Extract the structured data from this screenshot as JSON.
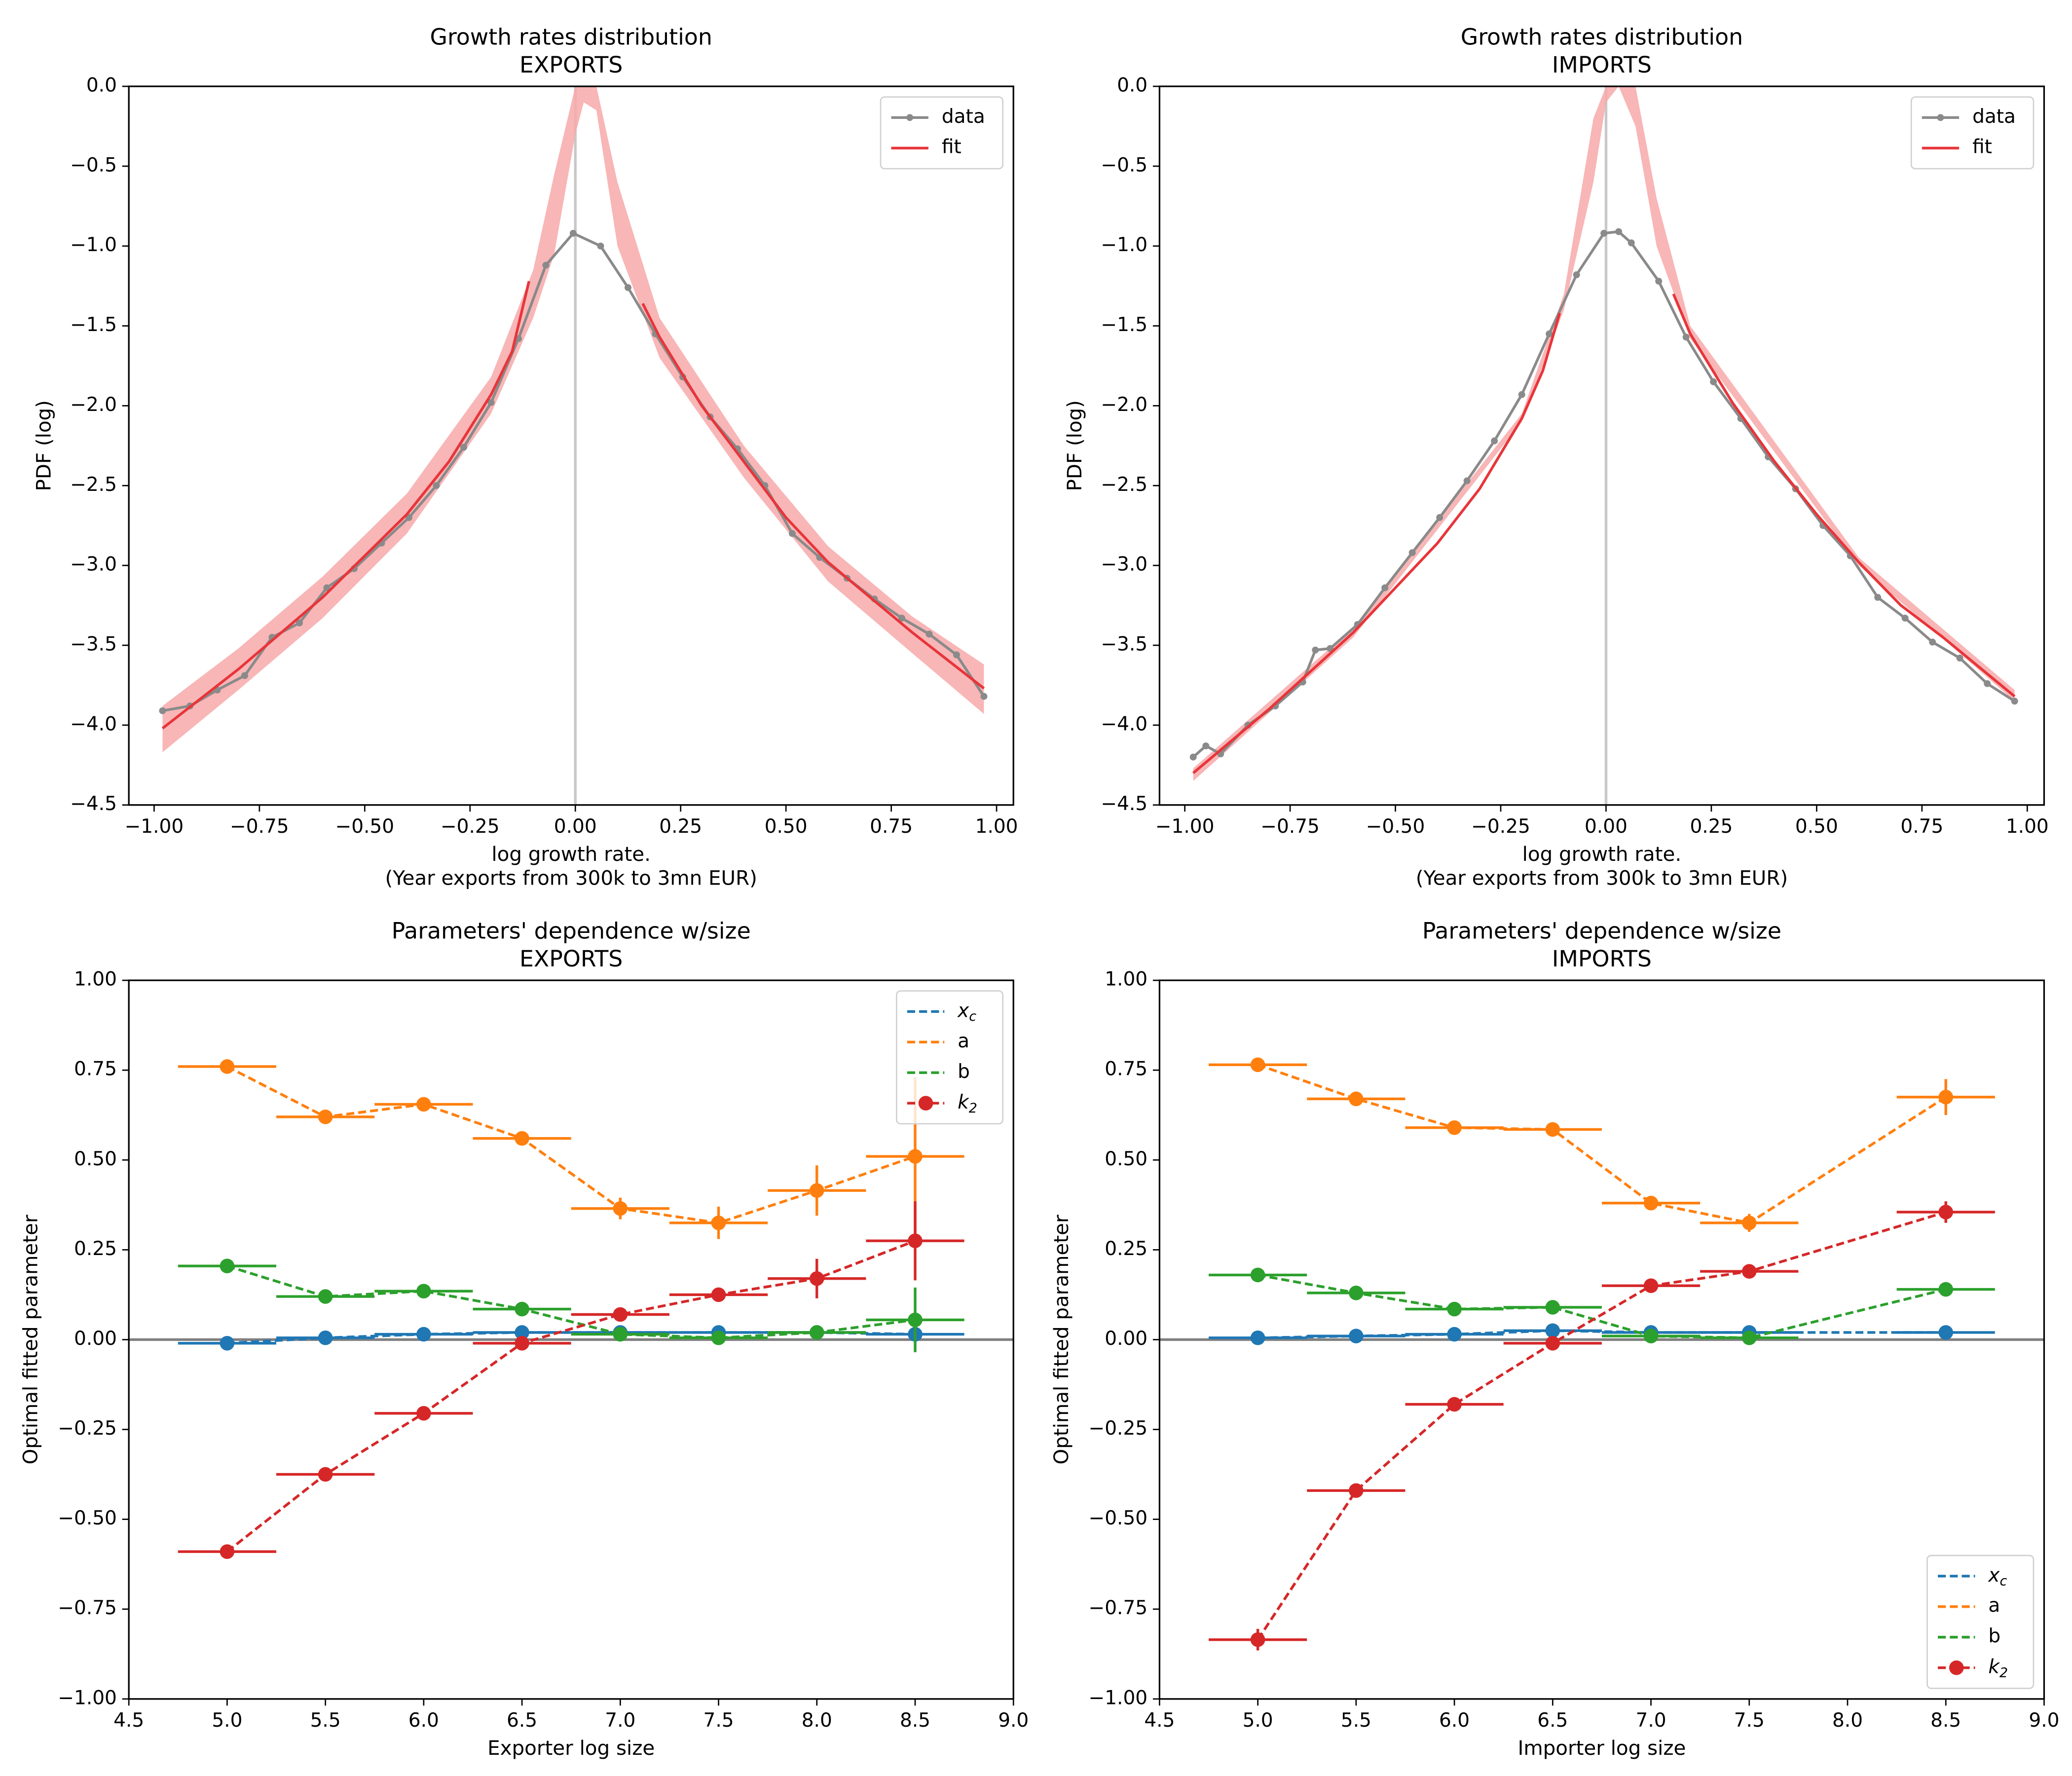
{
  "chart_data": [
    {
      "type": "line",
      "title": "Growth rates distribution",
      "subtitle": "EXPORTS",
      "xlabel": "log growth rate.",
      "xlabel2": "(Year exports from 300k to 3mn EUR)",
      "ylabel": "PDF (log)",
      "xlim": [
        -1.06,
        1.04
      ],
      "ylim": [
        -4.5,
        0
      ],
      "xticks": [
        {
          "value": -1,
          "label": "−1.00"
        },
        {
          "value": -0.75,
          "label": "−0.75"
        },
        {
          "value": -0.5,
          "label": "−0.50"
        },
        {
          "value": -0.25,
          "label": "−0.25"
        },
        {
          "value": 0,
          "label": "0.00"
        },
        {
          "value": 0.25,
          "label": "0.25"
        },
        {
          "value": 0.5,
          "label": "0.50"
        },
        {
          "value": 0.75,
          "label": "0.75"
        },
        {
          "value": 1,
          "label": "1.00"
        }
      ],
      "yticks": [
        {
          "value": 0,
          "label": "0.0"
        },
        {
          "value": -0.5,
          "label": "−0.5"
        },
        {
          "value": -1,
          "label": "−1.0"
        },
        {
          "value": -1.5,
          "label": "−1.5"
        },
        {
          "value": -2,
          "label": "−2.0"
        },
        {
          "value": -2.5,
          "label": "−2.5"
        },
        {
          "value": -3,
          "label": "−3.0"
        },
        {
          "value": -3.5,
          "label": "−3.5"
        },
        {
          "value": -4,
          "label": "−4.0"
        },
        {
          "value": -4.5,
          "label": "−4.5"
        }
      ],
      "vline": 0,
      "legend": "upper right",
      "series": [
        {
          "name": "data",
          "color": "#8a8a8a",
          "marker": true,
          "x": [
            -0.98,
            -0.915,
            -0.85,
            -0.785,
            -0.72,
            -0.655,
            -0.59,
            -0.525,
            -0.46,
            -0.395,
            -0.33,
            -0.265,
            -0.2,
            -0.135,
            -0.07,
            -0.005,
            0.06,
            0.125,
            0.19,
            0.255,
            0.32,
            0.385,
            0.45,
            0.515,
            0.58,
            0.645,
            0.71,
            0.775,
            0.84,
            0.905,
            0.97
          ],
          "values": [
            -3.91,
            -3.88,
            -3.78,
            -3.69,
            -3.45,
            -3.36,
            -3.14,
            -3.02,
            -2.86,
            -2.7,
            -2.5,
            -2.26,
            -1.98,
            -1.58,
            -1.12,
            -0.92,
            -1.0,
            -1.26,
            -1.55,
            -1.82,
            -2.07,
            -2.27,
            -2.5,
            -2.8,
            -2.95,
            -3.08,
            -3.21,
            -3.33,
            -3.43,
            -3.56,
            -3.82
          ]
        },
        {
          "name": "fit",
          "color": "#e8353a",
          "x": [
            -0.98,
            -0.8,
            -0.6,
            -0.4,
            -0.3,
            -0.2,
            -0.15,
            -0.11,
            0.0,
            0.16,
            0.2,
            0.3,
            0.4,
            0.5,
            0.6,
            0.7,
            0.8,
            0.97
          ],
          "values": [
            -4.02,
            -3.65,
            -3.2,
            -2.68,
            -2.35,
            -1.93,
            -1.66,
            -1.22,
            null,
            -1.36,
            -1.57,
            -2.0,
            -2.35,
            -2.7,
            -2.98,
            -3.2,
            -3.42,
            -3.77
          ],
          "band": {
            "color": "#f7a9aa",
            "x": [
              -0.98,
              -0.8,
              -0.6,
              -0.4,
              -0.2,
              -0.1,
              -0.05,
              0.0,
              0.02,
              0.05,
              0.1,
              0.2,
              0.4,
              0.6,
              0.8,
              0.97
            ],
            "lower": [
              -4.17,
              -3.78,
              -3.33,
              -2.8,
              -2.05,
              -1.45,
              -1.05,
              -0.3,
              -0.1,
              -0.15,
              -1.0,
              -1.7,
              -2.45,
              -3.1,
              -3.55,
              -3.93
            ],
            "upper": [
              -3.88,
              -3.52,
              -3.07,
              -2.55,
              -1.82,
              -1.15,
              -0.55,
              0.0,
              0.0,
              0.0,
              -0.6,
              -1.45,
              -2.25,
              -2.88,
              -3.32,
              -3.62
            ]
          }
        }
      ]
    },
    {
      "type": "line",
      "title": "Growth rates distribution",
      "subtitle": "IMPORTS",
      "xlabel": "log growth rate.",
      "xlabel2": "(Year exports from 300k to 3mn EUR)",
      "ylabel": "PDF (log)",
      "xlim": [
        -1.06,
        1.04
      ],
      "ylim": [
        -4.5,
        0
      ],
      "xticks": [
        {
          "value": -1,
          "label": "−1.00"
        },
        {
          "value": -0.75,
          "label": "−0.75"
        },
        {
          "value": -0.5,
          "label": "−0.50"
        },
        {
          "value": -0.25,
          "label": "−0.25"
        },
        {
          "value": 0,
          "label": "0.00"
        },
        {
          "value": 0.25,
          "label": "0.25"
        },
        {
          "value": 0.5,
          "label": "0.50"
        },
        {
          "value": 0.75,
          "label": "0.75"
        },
        {
          "value": 1,
          "label": "1.00"
        }
      ],
      "yticks": [
        {
          "value": 0,
          "label": "0.0"
        },
        {
          "value": -0.5,
          "label": "−0.5"
        },
        {
          "value": -1,
          "label": "−1.0"
        },
        {
          "value": -1.5,
          "label": "−1.5"
        },
        {
          "value": -2,
          "label": "−2.0"
        },
        {
          "value": -2.5,
          "label": "−2.5"
        },
        {
          "value": -3,
          "label": "−3.0"
        },
        {
          "value": -3.5,
          "label": "−3.5"
        },
        {
          "value": -4,
          "label": "−4.0"
        },
        {
          "value": -4.5,
          "label": "−4.5"
        }
      ],
      "vline": 0,
      "legend": "upper right",
      "series": [
        {
          "name": "data",
          "color": "#8a8a8a",
          "marker": true,
          "x": [
            -0.98,
            -0.95,
            -0.915,
            -0.85,
            -0.785,
            -0.72,
            -0.69,
            -0.655,
            -0.59,
            -0.525,
            -0.46,
            -0.395,
            -0.33,
            -0.265,
            -0.2,
            -0.135,
            -0.07,
            -0.005,
            0.03,
            0.06,
            0.125,
            0.19,
            0.255,
            0.32,
            0.385,
            0.45,
            0.515,
            0.58,
            0.645,
            0.71,
            0.775,
            0.84,
            0.905,
            0.97
          ],
          "values": [
            -4.2,
            -4.13,
            -4.18,
            -4.0,
            -3.88,
            -3.73,
            -3.53,
            -3.52,
            -3.37,
            -3.14,
            -2.92,
            -2.7,
            -2.47,
            -2.22,
            -1.93,
            -1.55,
            -1.18,
            -0.92,
            -0.91,
            -0.98,
            -1.22,
            -1.57,
            -1.85,
            -2.08,
            -2.32,
            -2.52,
            -2.75,
            -2.94,
            -3.2,
            -3.33,
            -3.48,
            -3.58,
            -3.74,
            -3.85
          ]
        },
        {
          "name": "fit",
          "color": "#e8353a",
          "x": [
            -0.98,
            -0.8,
            -0.6,
            -0.4,
            -0.3,
            -0.2,
            -0.15,
            -0.11,
            0.0,
            0.16,
            0.2,
            0.3,
            0.4,
            0.5,
            0.6,
            0.7,
            0.8,
            0.97
          ],
          "values": [
            -4.3,
            -3.9,
            -3.42,
            -2.86,
            -2.52,
            -2.08,
            -1.78,
            -1.42,
            null,
            -1.3,
            -1.55,
            -1.98,
            -2.35,
            -2.68,
            -2.98,
            -3.25,
            -3.45,
            -3.82
          ],
          "band": {
            "color": "#f7a9aa",
            "x": [
              -0.98,
              -0.6,
              -0.2,
              -0.1,
              -0.03,
              0.0,
              0.03,
              0.07,
              0.12,
              0.2,
              0.6,
              0.97
            ],
            "lower": [
              -4.35,
              -3.45,
              -2.1,
              -1.4,
              -0.6,
              -0.1,
              0.0,
              -0.25,
              -1.0,
              -1.58,
              -3.0,
              -3.85
            ],
            "upper": [
              -4.27,
              -3.39,
              -2.05,
              -1.3,
              -0.2,
              0.0,
              0.0,
              0.0,
              -0.7,
              -1.5,
              -2.95,
              -3.78
            ]
          }
        }
      ]
    },
    {
      "type": "scatter",
      "title": "Parameters' dependence w/size",
      "subtitle": "EXPORTS",
      "xlabel": "Exporter log size",
      "ylabel": "Optimal fitted parameter",
      "xlim": [
        4.5,
        9
      ],
      "ylim": [
        -1,
        1
      ],
      "xticks": [
        4.5,
        {
          "value": 5,
          "label": "5.0"
        },
        5.5,
        {
          "value": 6,
          "label": "6.0"
        },
        6.5,
        {
          "value": 7,
          "label": "7.0"
        },
        7.5,
        {
          "value": 8,
          "label": "8.0"
        },
        8.5,
        {
          "value": 9,
          "label": "9.0"
        }
      ],
      "yticks": [
        {
          "value": 1,
          "label": "1.00"
        },
        {
          "value": 0.75,
          "label": "0.75"
        },
        {
          "value": 0.5,
          "label": "0.50"
        },
        {
          "value": 0.25,
          "label": "0.25"
        },
        {
          "value": 0,
          "label": "0.00"
        },
        {
          "value": -0.25,
          "label": "−0.25"
        },
        {
          "value": -0.5,
          "label": "−0.50"
        },
        {
          "value": -0.75,
          "label": "−0.75"
        },
        {
          "value": -1,
          "label": "−1.00"
        }
      ],
      "hline": 0,
      "legend": "upper right",
      "series": [
        {
          "name": "x_c",
          "color": "#1f77b4",
          "xerr": 0.25,
          "x": [
            5,
            5.5,
            6,
            6.5,
            7,
            7.5,
            8,
            8.5
          ],
          "values": [
            -0.01,
            0.005,
            0.015,
            0.02,
            0.02,
            0.02,
            0.02,
            0.015
          ],
          "yerr": [
            0.005,
            0.005,
            0.005,
            0.005,
            0.005,
            0.005,
            0.005,
            0.005
          ]
        },
        {
          "name": "a",
          "color": "#ff7f0e",
          "xerr": 0.25,
          "x": [
            5,
            5.5,
            6,
            6.5,
            7,
            7.5,
            8,
            8.5
          ],
          "values": [
            0.76,
            0.62,
            0.655,
            0.56,
            0.365,
            0.325,
            0.415,
            0.51
          ],
          "yerr": [
            0.02,
            0.01,
            0.01,
            0.01,
            0.03,
            0.045,
            0.07,
            0.22
          ]
        },
        {
          "name": "b",
          "color": "#2ca02c",
          "xerr": 0.25,
          "x": [
            5,
            5.5,
            6,
            6.5,
            7,
            7.5,
            8,
            8.5
          ],
          "values": [
            0.205,
            0.12,
            0.135,
            0.085,
            0.015,
            0.005,
            0.02,
            0.055
          ],
          "yerr": [
            0.01,
            0.01,
            0.01,
            0.01,
            0.01,
            0.01,
            0.01,
            0.09
          ]
        },
        {
          "name": "k_2",
          "color": "#d62728",
          "xerr": 0.25,
          "legend_marker": true,
          "x": [
            5,
            5.5,
            6,
            6.5,
            7,
            7.5,
            8,
            8.5
          ],
          "values": [
            -0.59,
            -0.375,
            -0.205,
            -0.01,
            0.07,
            0.125,
            0.17,
            0.275
          ],
          "yerr": [
            0.02,
            0.01,
            0.01,
            0.01,
            0.01,
            0.01,
            0.055,
            0.11
          ]
        }
      ]
    },
    {
      "type": "scatter",
      "title": "Parameters' dependence w/size",
      "subtitle": "IMPORTS",
      "xlabel": "Importer log size",
      "ylabel": "Optimal fitted parameter",
      "xlim": [
        4.5,
        9
      ],
      "ylim": [
        -1,
        1
      ],
      "xticks": [
        4.5,
        {
          "value": 5,
          "label": "5.0"
        },
        5.5,
        {
          "value": 6,
          "label": "6.0"
        },
        6.5,
        {
          "value": 7,
          "label": "7.0"
        },
        7.5,
        {
          "value": 8,
          "label": "8.0"
        },
        8.5,
        {
          "value": 9,
          "label": "9.0"
        }
      ],
      "yticks": [
        {
          "value": 1,
          "label": "1.00"
        },
        {
          "value": 0.75,
          "label": "0.75"
        },
        {
          "value": 0.5,
          "label": "0.50"
        },
        {
          "value": 0.25,
          "label": "0.25"
        },
        {
          "value": 0,
          "label": "0.00"
        },
        {
          "value": -0.25,
          "label": "−0.25"
        },
        {
          "value": -0.5,
          "label": "−0.50"
        },
        {
          "value": -0.75,
          "label": "−0.75"
        },
        {
          "value": -1,
          "label": "−1.00"
        }
      ],
      "hline": 0,
      "legend": "lower right",
      "series": [
        {
          "name": "x_c",
          "color": "#1f77b4",
          "xerr": 0.25,
          "x": [
            5,
            5.5,
            6,
            6.5,
            7,
            7.5,
            8.5
          ],
          "values": [
            0.005,
            0.01,
            0.015,
            0.025,
            0.02,
            0.02,
            0.02
          ],
          "yerr": [
            0.005,
            0.005,
            0.005,
            0.005,
            0.005,
            0.005,
            0.005
          ]
        },
        {
          "name": "a",
          "color": "#ff7f0e",
          "xerr": 0.25,
          "x": [
            5,
            5.5,
            6,
            6.5,
            7,
            7.5,
            8.5
          ],
          "values": [
            0.765,
            0.67,
            0.59,
            0.585,
            0.38,
            0.325,
            0.675
          ],
          "yerr": [
            0.02,
            0.01,
            0.01,
            0.02,
            0.01,
            0.025,
            0.05
          ]
        },
        {
          "name": "b",
          "color": "#2ca02c",
          "xerr": 0.25,
          "x": [
            5,
            5.5,
            6,
            6.5,
            7,
            7.5,
            8.5
          ],
          "values": [
            0.18,
            0.13,
            0.085,
            0.09,
            0.01,
            0.005,
            0.14
          ],
          "yerr": [
            0.01,
            0.01,
            0.01,
            0.01,
            0.01,
            0.01,
            0.02
          ]
        },
        {
          "name": "k_2",
          "color": "#d62728",
          "xerr": 0.25,
          "legend_marker": true,
          "x": [
            5,
            5.5,
            6,
            6.5,
            7,
            7.5,
            8.5
          ],
          "values": [
            -0.835,
            -0.42,
            -0.18,
            -0.01,
            0.15,
            0.19,
            0.355
          ],
          "yerr": [
            0.03,
            0.01,
            0.01,
            0.01,
            0.01,
            0.015,
            0.03
          ]
        }
      ]
    }
  ]
}
